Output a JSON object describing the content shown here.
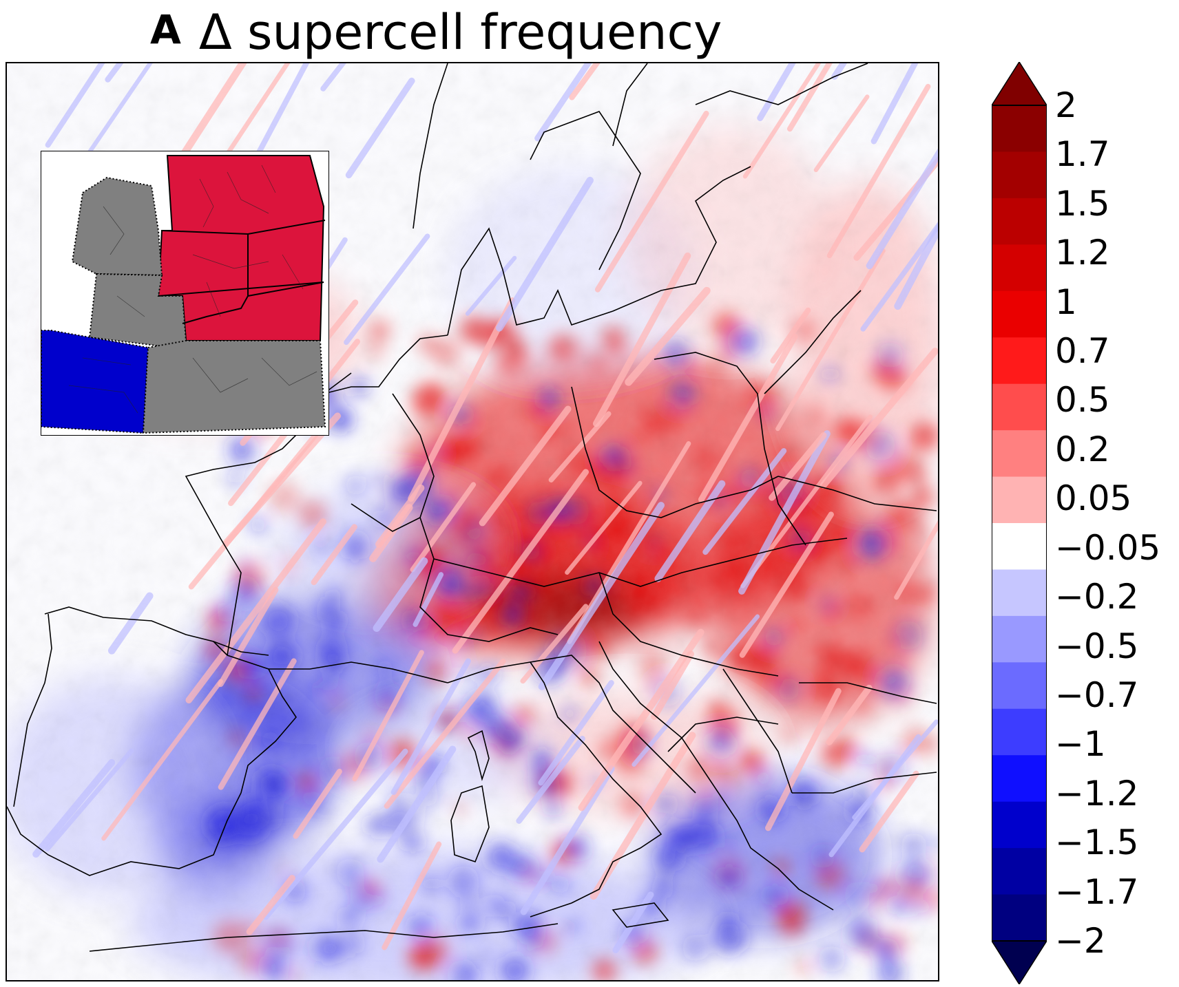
{
  "panel": {
    "letter": "A",
    "title": "Δ supercell frequency"
  },
  "colorbar": {
    "ticks": [
      "2",
      "1.7",
      "1.5",
      "1.2",
      "1",
      "0.7",
      "0.5",
      "0.2",
      "0.05",
      "−0.05",
      "−0.2",
      "−0.5",
      "−0.7",
      "−1",
      "−1.2",
      "−1.5",
      "−1.7",
      "−2"
    ],
    "colors": [
      "#8b0000",
      "#a30000",
      "#bb0000",
      "#d40000",
      "#ea0000",
      "#ff1a1a",
      "#ff4d4d",
      "#ff8080",
      "#ffb3b3",
      "#ffffff",
      "#c6c6ff",
      "#9999ff",
      "#6b6bff",
      "#3d3dff",
      "#0f0fff",
      "#0000cc",
      "#0000a3",
      "#000080"
    ],
    "over_color": "#800000",
    "under_color": "#000050"
  },
  "map": {
    "positive_color": "#e50000",
    "strong_positive_color": "#8b0000",
    "negative_color": "#2020e0",
    "light_positive_color": "#ffb8b8",
    "light_negative_color": "#c0c0ff"
  },
  "inset": {
    "regions": [
      {
        "name": "north-central-east",
        "color": "#dc143c"
      },
      {
        "name": "iberia",
        "color": "#0000cc"
      },
      {
        "name": "british-isles",
        "color": "#808080"
      },
      {
        "name": "france",
        "color": "#808080"
      },
      {
        "name": "mediterranean-south",
        "color": "#808080"
      }
    ]
  }
}
